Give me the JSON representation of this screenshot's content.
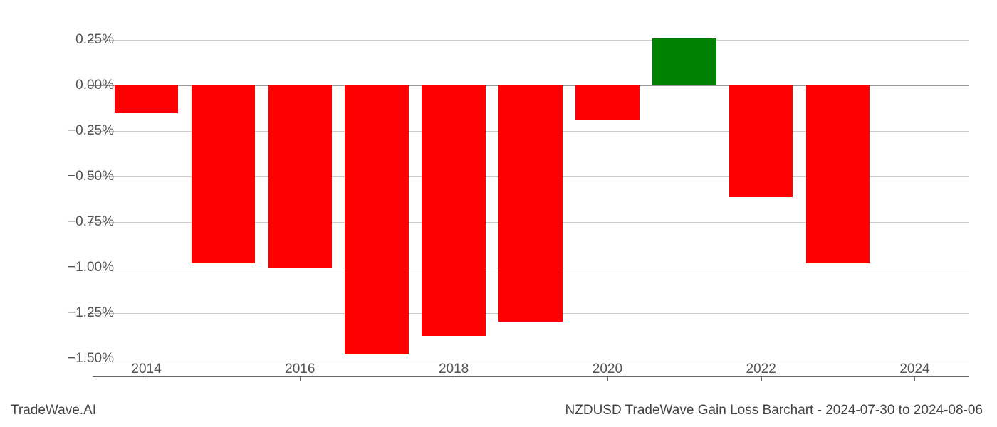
{
  "chart": {
    "type": "bar",
    "years": [
      2014,
      2015,
      2016,
      2017,
      2018,
      2019,
      2020,
      2021,
      2022,
      2023
    ],
    "values": [
      -0.155,
      -0.975,
      -1.0,
      -1.475,
      -1.375,
      -1.295,
      -0.19,
      0.258,
      -0.615,
      -0.975
    ],
    "colors": [
      "#ff0000",
      "#ff0000",
      "#ff0000",
      "#ff0000",
      "#ff0000",
      "#ff0000",
      "#ff0000",
      "#008000",
      "#ff0000",
      "#ff0000"
    ],
    "ymin": -1.6,
    "ymax": 0.35,
    "yticks": [
      0.25,
      0.0,
      -0.25,
      -0.5,
      -0.75,
      -1.0,
      -1.25,
      -1.5
    ],
    "ytick_labels": [
      "0.25%",
      "0.00%",
      "−0.25%",
      "−0.50%",
      "−0.75%",
      "−1.00%",
      "−1.25%",
      "−1.50%"
    ],
    "xticks": [
      2014,
      2016,
      2018,
      2020,
      2022,
      2024
    ],
    "xtick_labels": [
      "2014",
      "2016",
      "2018",
      "2020",
      "2022",
      "2024"
    ],
    "xmin": 2013.3,
    "xmax": 2024.7,
    "bar_width": 0.83,
    "background_color": "#ffffff",
    "grid_color": "#cccccc",
    "tick_fontsize": 19,
    "tick_color": "#555555"
  },
  "footer": {
    "left": "TradeWave.AI",
    "right": "NZDUSD TradeWave Gain Loss Barchart - 2024-07-30 to 2024-08-06"
  }
}
